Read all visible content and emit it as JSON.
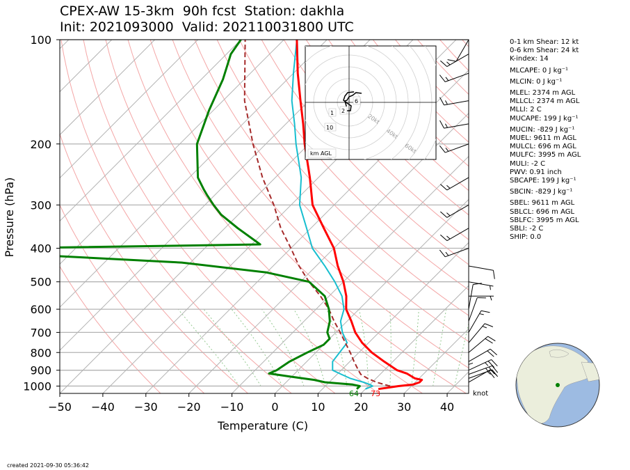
{
  "title": {
    "line1": "CPEX-AW 15-3km  90h fcst  Station: dakhla",
    "line2": "Init: 2021093000  Valid: 2021100318 00 UTC"
  },
  "stats": [
    "0-1 km Shear: 12 kt",
    "0-6 km Shear: 24 kt",
    "K-index: 14",
    "MLCAPE: 0 J kg⁻¹",
    "MLCIN: 0 J kg⁻¹",
    "MLEL: 2374 m AGL",
    "MLLCL: 2374 m AGL",
    "MLLI: 2 C",
    "MUCAPE: 199 J kg⁻¹",
    "MUCIN: -829 J kg⁻¹",
    "MUEL: 9611 m AGL",
    "MULCL: 696 m AGL",
    "MULFC: 3995 m AGL",
    "MULI: -2 C",
    "PWV: 0.91 inch",
    "SBCAPE: 199 J kg⁻¹",
    "SBCIN: -829 J kg⁻¹",
    "SBEL: 9611 m AGL",
    "SBLCL: 696 m AGL",
    "SBLFC: 3995 m AGL",
    "SBLI: -2 C",
    "SHIP: 0.0"
  ],
  "footer": "created 2021-09-30 05:36:42",
  "wind_unit": "knot",
  "surface_labels": {
    "dewpoint": "64",
    "temperature": "73"
  },
  "hodograph": {
    "frame_label": "km AGL",
    "ring_labels": [
      "20kt",
      "40kt",
      "60kt",
      "80kt"
    ],
    "height_labels": [
      "1",
      "2",
      "6",
      "10"
    ]
  },
  "colors": {
    "temperature": "#ff0000",
    "dewpoint": "#008000",
    "wetbulb": "#17becf",
    "parcel": "#a52a2a",
    "dry_adiabat": "#f4a6a6",
    "moist_adiabat": "#93c88f",
    "isotherm": "#b3b3b3",
    "ocean": "#9dbbe2",
    "land": "#ebeedc"
  },
  "chart_data": {
    "type": "skew-t",
    "xlabel": "Temperature (C)",
    "ylabel": "Pressure (hPa)",
    "xlim": [
      -50,
      45
    ],
    "ylim": [
      1050,
      100
    ],
    "pressure_ticks": [
      100,
      200,
      300,
      400,
      500,
      600,
      700,
      800,
      900,
      1000
    ],
    "temp_ticks": [
      -50,
      -40,
      -30,
      -20,
      -10,
      0,
      10,
      20,
      30,
      40
    ],
    "series": [
      {
        "key": "temperature",
        "points": [
          [
            1020,
            23
          ],
          [
            1010,
            25
          ],
          [
            1000,
            27
          ],
          [
            990,
            30
          ],
          [
            975,
            31
          ],
          [
            960,
            31
          ],
          [
            950,
            29
          ],
          [
            920,
            26
          ],
          [
            900,
            23
          ],
          [
            850,
            18
          ],
          [
            800,
            13
          ],
          [
            750,
            8.5
          ],
          [
            700,
            4.5
          ],
          [
            650,
            1
          ],
          [
            600,
            -3
          ],
          [
            550,
            -6
          ],
          [
            500,
            -10
          ],
          [
            450,
            -15
          ],
          [
            400,
            -20
          ],
          [
            350,
            -27
          ],
          [
            300,
            -35
          ],
          [
            250,
            -42
          ],
          [
            200,
            -51
          ],
          [
            175,
            -56
          ],
          [
            150,
            -62
          ],
          [
            125,
            -69
          ],
          [
            100,
            -77
          ]
        ]
      },
      {
        "key": "dewpoint",
        "points": [
          [
            1020,
            18
          ],
          [
            1000,
            18
          ],
          [
            990,
            16
          ],
          [
            975,
            9
          ],
          [
            960,
            6
          ],
          [
            940,
            0
          ],
          [
            920,
            -6
          ],
          [
            900,
            -5
          ],
          [
            850,
            -4
          ],
          [
            800,
            -2
          ],
          [
            760,
            0
          ],
          [
            730,
            0
          ],
          [
            700,
            -2
          ],
          [
            650,
            -4
          ],
          [
            600,
            -7
          ],
          [
            550,
            -11
          ],
          [
            500,
            -18
          ],
          [
            470,
            -30
          ],
          [
            440,
            -52
          ],
          [
            420,
            -85
          ],
          [
            400,
            -95
          ],
          [
            390,
            -38
          ],
          [
            350,
            -47
          ],
          [
            320,
            -54
          ],
          [
            300,
            -58
          ],
          [
            280,
            -62
          ],
          [
            270,
            -64
          ],
          [
            250,
            -68
          ],
          [
            200,
            -76
          ],
          [
            160,
            -81
          ],
          [
            130,
            -85
          ],
          [
            110,
            -89
          ],
          [
            100,
            -90
          ]
        ]
      },
      {
        "key": "wetbulb",
        "points": [
          [
            1020,
            20
          ],
          [
            1000,
            21
          ],
          [
            990,
            20
          ],
          [
            975,
            18
          ],
          [
            950,
            14
          ],
          [
            925,
            11
          ],
          [
            900,
            8
          ],
          [
            850,
            6
          ],
          [
            800,
            5.5
          ],
          [
            750,
            5
          ],
          [
            700,
            1.5
          ],
          [
            650,
            -1.5
          ],
          [
            600,
            -3.5
          ],
          [
            550,
            -7
          ],
          [
            500,
            -12
          ],
          [
            450,
            -18
          ],
          [
            400,
            -25
          ],
          [
            350,
            -31
          ],
          [
            300,
            -38
          ],
          [
            250,
            -44
          ],
          [
            200,
            -53
          ],
          [
            175,
            -58
          ],
          [
            150,
            -64
          ],
          [
            125,
            -70
          ],
          [
            100,
            -77
          ]
        ]
      },
      {
        "key": "parcel",
        "points": [
          [
            1000,
            25
          ],
          [
            975,
            21
          ],
          [
            950,
            18
          ],
          [
            925,
            15.5
          ],
          [
            900,
            14
          ],
          [
            850,
            11
          ],
          [
            800,
            8
          ],
          [
            750,
            4.6
          ],
          [
            700,
            1
          ],
          [
            650,
            -3
          ],
          [
            600,
            -7
          ],
          [
            550,
            -12
          ],
          [
            500,
            -18
          ],
          [
            450,
            -24
          ],
          [
            400,
            -30
          ],
          [
            350,
            -37
          ],
          [
            300,
            -44
          ],
          [
            250,
            -53
          ],
          [
            200,
            -63
          ],
          [
            150,
            -75
          ],
          [
            100,
            -89
          ]
        ]
      }
    ],
    "wind_barbs": [
      {
        "p": 1000,
        "speed": 5,
        "dir": 0
      },
      {
        "p": 975,
        "speed": 15,
        "dir": 60
      },
      {
        "p": 950,
        "speed": 20,
        "dir": 70
      },
      {
        "p": 925,
        "speed": 25,
        "dir": 70
      },
      {
        "p": 900,
        "speed": 25,
        "dir": 65
      },
      {
        "p": 850,
        "speed": 20,
        "dir": 60
      },
      {
        "p": 800,
        "speed": 20,
        "dir": 50
      },
      {
        "p": 750,
        "speed": 15,
        "dir": 40
      },
      {
        "p": 700,
        "speed": 15,
        "dir": 30
      },
      {
        "p": 650,
        "speed": 10,
        "dir": 20
      },
      {
        "p": 600,
        "speed": 10,
        "dir": 10
      },
      {
        "p": 550,
        "speed": 5,
        "dir": 90
      },
      {
        "p": 500,
        "speed": 5,
        "dir": 100
      },
      {
        "p": 450,
        "speed": 10,
        "dir": 100
      },
      {
        "p": 400,
        "speed": 15,
        "dir": 250
      },
      {
        "p": 350,
        "speed": 15,
        "dir": 240
      },
      {
        "p": 300,
        "speed": 15,
        "dir": 240
      },
      {
        "p": 250,
        "speed": 15,
        "dir": 240
      },
      {
        "p": 200,
        "speed": 15,
        "dir": 250
      },
      {
        "p": 175,
        "speed": 15,
        "dir": 260
      },
      {
        "p": 150,
        "speed": 15,
        "dir": 260
      },
      {
        "p": 125,
        "speed": 15,
        "dir": 250
      },
      {
        "p": 110,
        "speed": 15,
        "dir": 240
      },
      {
        "p": 100,
        "speed": 10,
        "dir": 210
      }
    ],
    "hodograph_uv": [
      [
        18,
        -13
      ],
      [
        10,
        -14
      ],
      [
        5,
        -10
      ],
      [
        0,
        -8
      ],
      [
        -3,
        -3
      ],
      [
        -6,
        -2
      ],
      [
        -4,
        5
      ],
      [
        -4,
        12
      ],
      [
        2,
        12
      ],
      [
        3,
        5
      ],
      [
        -3,
        1
      ],
      [
        -8,
        -3
      ],
      [
        -6,
        -9
      ],
      [
        -2,
        -14
      ],
      [
        7,
        -15
      ]
    ]
  }
}
